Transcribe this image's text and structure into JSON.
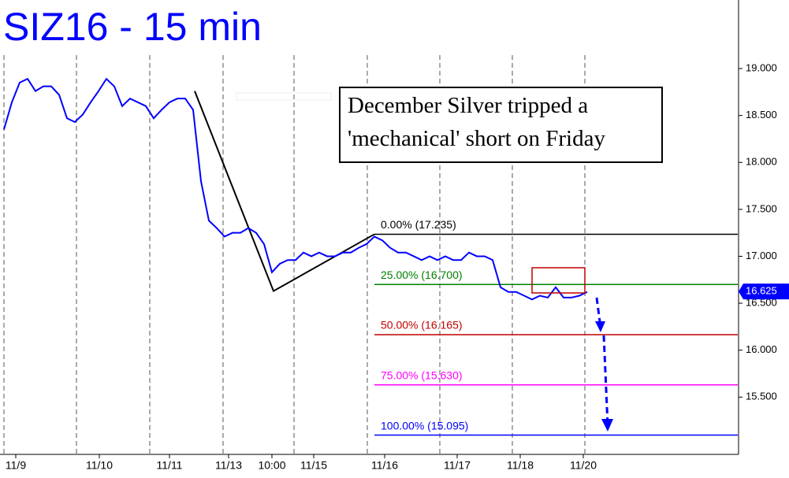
{
  "chart_data": {
    "type": "line",
    "title": "SIZ16 - 15 min",
    "annotation": "December Silver tripped a 'mechanical' short on Friday",
    "series": [
      {
        "name": "SIZ16",
        "color": "#0000ff",
        "values": [
          18.35,
          18.64,
          18.85,
          18.89,
          18.76,
          18.81,
          18.81,
          18.72,
          18.47,
          18.43,
          18.51,
          18.64,
          18.76,
          18.89,
          18.81,
          18.6,
          18.68,
          18.64,
          18.6,
          18.47,
          18.56,
          18.64,
          18.68,
          18.68,
          18.56,
          17.8,
          17.38,
          17.3,
          17.21,
          17.25,
          17.25,
          17.3,
          17.25,
          17.13,
          16.83,
          16.92,
          16.96,
          16.96,
          17.04,
          17.0,
          17.04,
          17.0,
          17.0,
          17.04,
          17.04,
          17.09,
          17.13,
          17.21,
          17.17,
          17.09,
          17.04,
          17.04,
          17.0,
          16.96,
          17.0,
          16.96,
          17.0,
          16.96,
          16.96,
          17.04,
          17.0,
          17.0,
          16.96,
          16.67,
          16.62,
          16.62,
          16.58,
          16.54,
          16.58,
          16.56,
          16.67,
          16.56,
          16.56,
          16.58,
          16.62
        ]
      }
    ],
    "last_price": {
      "value": 16.625,
      "label": "16.625"
    },
    "zigzag": {
      "x": [
        24.2,
        34.2,
        47
      ],
      "values": [
        18.76,
        16.63,
        17.235
      ]
    },
    "fib_levels": [
      {
        "label": "0.00% (17.235)",
        "value": 17.235,
        "color": "#000000"
      },
      {
        "label": "25.00% (16.700)",
        "value": 16.7,
        "color": "#008000"
      },
      {
        "label": "50.00% (16.165)",
        "value": 16.165,
        "color": "#c00000"
      },
      {
        "label": "75.00% (15.630)",
        "value": 15.63,
        "color": "#ff00ff"
      },
      {
        "label": "100.00% (15.095)",
        "value": 15.095,
        "color": "#0000ff"
      }
    ],
    "fib_start": 47,
    "xlim": [
      -0.5,
      93.1
    ],
    "xticks": [
      {
        "value": 1.5,
        "label": "11/9"
      },
      {
        "value": 12.1,
        "label": "11/10"
      },
      {
        "value": 21,
        "label": "11/11"
      },
      {
        "value": 28.5,
        "label": "11/13"
      },
      {
        "value": 34,
        "label": "10:00"
      },
      {
        "value": 39.3,
        "label": "11/15"
      },
      {
        "value": 48.3,
        "label": "11/16"
      },
      {
        "value": 57.5,
        "label": "11/17"
      },
      {
        "value": 65.5,
        "label": "11/18"
      },
      {
        "value": 73.5,
        "label": "11/20"
      }
    ],
    "ylim": [
      14.89,
      19.73
    ],
    "yticks": [
      {
        "value": 15.5,
        "label": "15.500"
      },
      {
        "value": 16,
        "label": "16.000"
      },
      {
        "value": 16.5,
        "label": "16.500"
      },
      {
        "value": 17,
        "label": "17.000"
      },
      {
        "value": 17.5,
        "label": "17.500"
      },
      {
        "value": 18,
        "label": "18.000"
      },
      {
        "value": 18.5,
        "label": "18.500"
      },
      {
        "value": 19,
        "label": "19.000"
      }
    ]
  }
}
